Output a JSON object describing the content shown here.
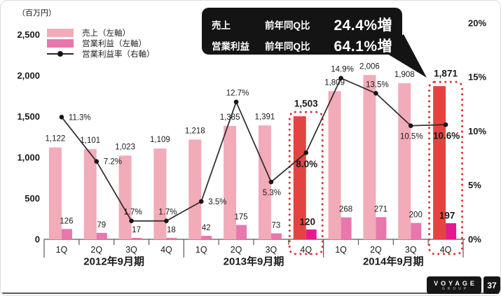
{
  "legend": {
    "items": [
      {
        "label": "売上（左軸）",
        "color": "#f2abb8"
      },
      {
        "label": "営業利益（左軸）",
        "color": "#e877ad"
      },
      {
        "label": "営業利益率（右軸）",
        "color": "#2a2a2a"
      }
    ]
  },
  "callout": {
    "rows": [
      {
        "label": "売上",
        "metric": "前年同Q比",
        "value": "24.4%増"
      },
      {
        "label": "営業利益",
        "metric": "前年同Q比",
        "value": "64.1%増"
      }
    ]
  },
  "chart_data": {
    "type": "bar+line",
    "unit_label": "（百万円）",
    "categories": [
      "1Q",
      "2Q",
      "3Q",
      "4Q",
      "1Q",
      "2Q",
      "3Q",
      "4Q",
      "1Q",
      "2Q",
      "3Q",
      "4Q"
    ],
    "year_groups": [
      {
        "label": "2012年9月期"
      },
      {
        "label": "2013年9月期"
      },
      {
        "label": "2014年9月期"
      }
    ],
    "series": [
      {
        "name": "売上（左軸）",
        "type": "bar",
        "axis": "left",
        "values": [
          1122,
          1101,
          1023,
          1109,
          1218,
          1385,
          1391,
          1503,
          1809,
          2006,
          1908,
          1871
        ],
        "labels": [
          "1,122",
          "1,101",
          "1,023",
          "1,109",
          "1,218",
          "1,385",
          "1,391",
          "1,503",
          "1,809",
          "2,006",
          "1,908",
          "1,871"
        ]
      },
      {
        "name": "営業利益（左軸）",
        "type": "bar",
        "axis": "left",
        "values": [
          126,
          79,
          17,
          18,
          42,
          175,
          73,
          120,
          268,
          271,
          200,
          197
        ],
        "labels": [
          "126",
          "79",
          "17",
          "18",
          "42",
          "175",
          "73",
          "120",
          "268",
          "271",
          "200",
          "197"
        ]
      },
      {
        "name": "営業利益率（右軸）",
        "type": "line",
        "axis": "right",
        "values": [
          11.3,
          7.2,
          1.7,
          1.7,
          3.5,
          12.7,
          5.3,
          8.0,
          14.9,
          13.5,
          10.5,
          10.6
        ],
        "labels": [
          "11.3%",
          "7.2%",
          "1.7%",
          "1.7%",
          "3.5%",
          "12.7%",
          "5.3%",
          "8.0%",
          "14.9%",
          "13.5%",
          "10.5%",
          "10.6%"
        ],
        "label_pos": [
          "right",
          "right",
          "above",
          "above",
          "right",
          "above",
          "below",
          "below",
          "above",
          "above",
          "below",
          "below"
        ],
        "label_bold": [
          7,
          11
        ]
      }
    ],
    "highlight_indices": [
      7,
      11
    ],
    "left_axis": {
      "min": 0,
      "max": 2500,
      "tick_values": [
        0,
        500,
        1000,
        1500,
        2000,
        2500
      ],
      "tick_labels": [
        "0",
        "500",
        "1,000",
        "1,500",
        "2,000",
        "2,500"
      ]
    },
    "right_axis": {
      "min": 0,
      "max": 20,
      "tick_values": [
        0,
        5,
        10,
        15,
        20
      ],
      "tick_labels": [
        "0%",
        "5%",
        "10%",
        "15%",
        "20%"
      ]
    },
    "colors": {
      "sales": "#f2abb8",
      "profit": "#e877ad",
      "sales_highlight": "#e34442",
      "profit_highlight": "#e5198e",
      "highlight_border": "#dc3434",
      "line": "#2a2a2a",
      "axis": "#58595b"
    },
    "grid": false,
    "legend_position": "top-left"
  },
  "footer": {
    "logo_line1": "VOYAGE",
    "logo_line2": "GROUP",
    "page_number": "37"
  }
}
